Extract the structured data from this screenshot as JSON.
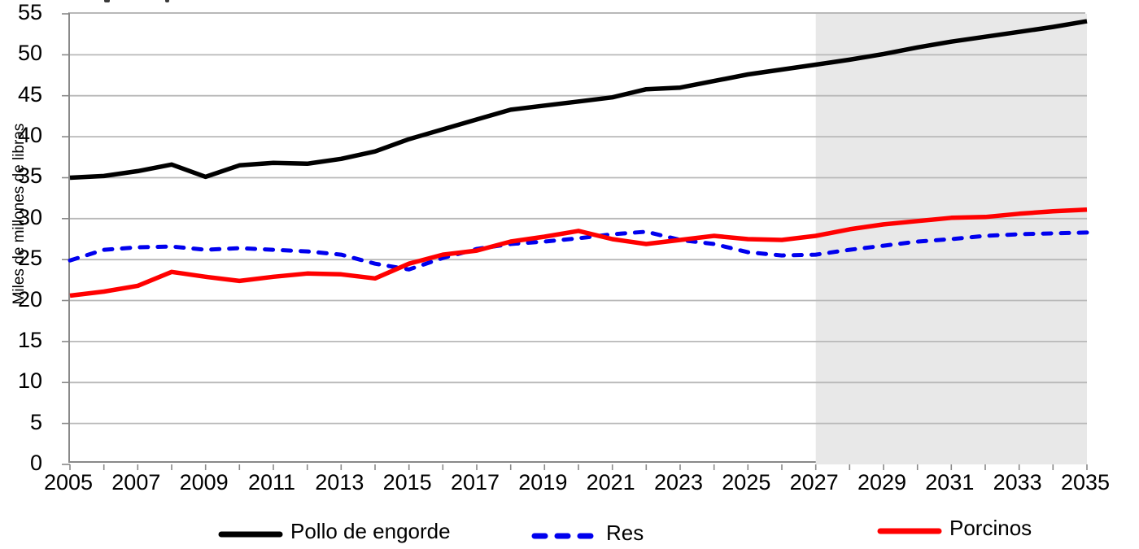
{
  "chart_data": {
    "type": "line",
    "title": "",
    "ylabel": "Miles de millones de libras",
    "xlabel": "",
    "ylim": [
      0,
      55
    ],
    "yticks": [
      0,
      5,
      10,
      15,
      20,
      25,
      30,
      35,
      40,
      45,
      50,
      55
    ],
    "x": [
      2005,
      2006,
      2007,
      2008,
      2009,
      2010,
      2011,
      2012,
      2013,
      2014,
      2015,
      2016,
      2017,
      2018,
      2019,
      2020,
      2021,
      2022,
      2023,
      2024,
      2025,
      2026,
      2027,
      2028,
      2029,
      2030,
      2031,
      2032,
      2033,
      2034,
      2035
    ],
    "xtick_labels": [
      "2005",
      "2007",
      "2009",
      "2011",
      "2013",
      "2015",
      "2017",
      "2019",
      "2021",
      "2023",
      "2025",
      "2027",
      "2029",
      "2031",
      "2033",
      "2035"
    ],
    "grid": "horizontal",
    "legend_position": "bottom",
    "forecast_region": {
      "start": 2027,
      "end": 2035,
      "color": "#e8e8e8"
    },
    "series": [
      {
        "name": "Pollo de engorde",
        "color": "#000000",
        "style": "solid",
        "values": [
          35.0,
          35.2,
          35.8,
          36.6,
          35.1,
          36.5,
          36.8,
          36.7,
          37.3,
          38.2,
          39.7,
          40.9,
          42.1,
          43.3,
          43.8,
          44.3,
          44.8,
          45.8,
          46.0,
          46.8,
          47.6,
          48.2,
          48.8,
          49.4,
          50.1,
          50.9,
          51.6,
          52.2,
          52.8,
          53.4,
          54.1
        ]
      },
      {
        "name": "Res",
        "color": "#0000ee",
        "style": "dashed",
        "values": [
          24.9,
          26.2,
          26.5,
          26.6,
          26.2,
          26.4,
          26.2,
          26.0,
          25.6,
          24.5,
          23.8,
          25.2,
          26.3,
          26.9,
          27.2,
          27.6,
          28.1,
          28.4,
          27.4,
          26.9,
          25.9,
          25.5,
          25.6,
          26.2,
          26.7,
          27.2,
          27.5,
          27.9,
          28.1,
          28.2,
          28.3
        ]
      },
      {
        "name": "Porcinos",
        "color": "#ff0000",
        "style": "solid",
        "values": [
          20.6,
          21.1,
          21.8,
          23.5,
          22.9,
          22.4,
          22.9,
          23.3,
          23.2,
          22.7,
          24.5,
          25.6,
          26.1,
          27.2,
          27.8,
          28.5,
          27.5,
          26.9,
          27.4,
          27.9,
          27.5,
          27.4,
          27.9,
          28.7,
          29.3,
          29.7,
          30.1,
          30.2,
          30.6,
          30.9,
          31.1
        ]
      }
    ],
    "style": {
      "gridline_color": "#b8b8b8",
      "axis_color": "#898989",
      "text_color": "#000000"
    }
  }
}
